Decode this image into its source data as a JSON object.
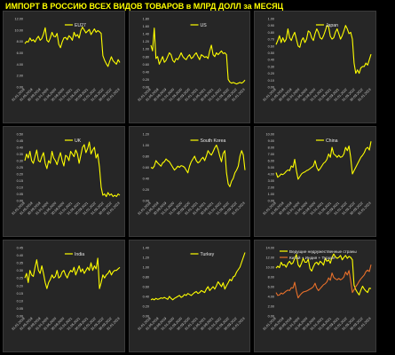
{
  "title": "ИМПОРТ В РОССИЮ ВСЕХ ВИДОВ ТОВАРОВ в МЛРД ДОЛЛ за МЕСЯЦ",
  "colors": {
    "line": "#ffff00",
    "series2": "#e8702a",
    "background": "#000000",
    "panel": "#262626"
  },
  "chart_data": [
    {
      "type": "line",
      "legend": [
        "EU27"
      ],
      "yticks": [
        "0.00",
        "2.00",
        "4.00",
        "6.00",
        "8.00",
        "10.00",
        "12.00"
      ],
      "ylim": [
        0,
        12
      ],
      "xticks": [
        "31.01.2019",
        "31.05.2019",
        "30.09.2019",
        "31.01.2020",
        "31.05.2020",
        "30.09.2020",
        "31.01.2021",
        "31.05.2021",
        "30.09.2021",
        "31.01.2022",
        "31.05.2022",
        "30.09.2022",
        "31.01.2023"
      ],
      "series": [
        {
          "values": [
            7.6,
            8.0,
            7.9,
            8.6,
            8.1,
            8.3,
            7.9,
            8.5,
            8.9,
            8.2,
            8.5,
            9.3,
            10.4,
            8.2,
            7.9,
            8.6,
            9.6,
            8.9,
            8.8,
            9.4,
            7.5,
            6.9,
            7.9,
            8.6,
            8.7,
            8.3,
            9.0,
            8.7,
            8.2,
            9.6,
            8.9,
            9.2,
            8.6,
            9.9,
            10.5,
            10.0,
            9.5,
            9.8,
            10.1,
            9.2,
            9.7,
            10.2,
            9.6,
            9.9,
            9.7,
            9.4,
            5.5,
            4.7,
            4.1,
            3.6,
            4.5,
            5.3,
            4.6,
            4.3,
            4.0,
            4.8,
            4.3
          ]
        }
      ]
    },
    {
      "type": "line",
      "legend": [
        "US"
      ],
      "yticks": [
        "0.00",
        "0.20",
        "0.40",
        "0.60",
        "0.80",
        "1.00",
        "1.20",
        "1.40",
        "1.60",
        "1.80"
      ],
      "ylim": [
        0,
        1.8
      ],
      "xticks": [
        "31.01.2019",
        "31.05.2019",
        "30.09.2019",
        "31.01.2020",
        "31.05.2020",
        "30.09.2020",
        "31.01.2021",
        "31.05.2021",
        "30.09.2021",
        "31.01.2022",
        "31.05.2022",
        "30.09.2022",
        "31.01.2023"
      ],
      "series": [
        {
          "values": [
            1.1,
            0.95,
            1.55,
            0.75,
            0.8,
            0.6,
            0.7,
            0.8,
            0.65,
            0.7,
            0.8,
            0.9,
            0.85,
            0.7,
            0.65,
            0.75,
            0.72,
            0.8,
            0.9,
            0.8,
            0.75,
            0.72,
            0.8,
            0.85,
            0.75,
            0.78,
            0.85,
            0.9,
            0.8,
            0.72,
            0.85,
            0.82,
            0.78,
            0.8,
            0.75,
            0.95,
            1.1,
            0.85,
            0.8,
            0.9,
            0.85,
            0.9,
            0.95,
            0.88,
            0.9,
            0.85,
            0.2,
            0.13,
            0.1,
            0.12,
            0.1,
            0.08,
            0.1,
            0.12,
            0.1,
            0.13,
            0.18
          ]
        }
      ]
    },
    {
      "type": "line",
      "legend": [
        "Japan"
      ],
      "yticks": [
        "0.00",
        "0.10",
        "0.20",
        "0.30",
        "0.40",
        "0.50",
        "0.60",
        "0.70",
        "0.80",
        "0.90",
        "1.00"
      ],
      "ylim": [
        0,
        1.0
      ],
      "xticks": [
        "31.01.2019",
        "31.05.2019",
        "30.09.2019",
        "31.01.2020",
        "31.05.2020",
        "30.09.2020",
        "31.01.2021",
        "31.05.2021",
        "30.09.2021",
        "31.01.2022",
        "31.05.2022",
        "30.09.2022",
        "31.01.2023"
      ],
      "series": [
        {
          "values": [
            0.62,
            0.68,
            0.75,
            0.65,
            0.72,
            0.66,
            0.7,
            0.85,
            0.72,
            0.68,
            0.75,
            0.8,
            0.7,
            0.6,
            0.58,
            0.68,
            0.72,
            0.65,
            0.7,
            0.82,
            0.8,
            0.72,
            0.68,
            0.78,
            0.85,
            0.8,
            0.72,
            0.7,
            0.75,
            0.82,
            0.9,
            0.88,
            0.74,
            0.7,
            0.72,
            0.8,
            0.85,
            0.78,
            0.7,
            0.75,
            0.82,
            0.9,
            0.85,
            0.78,
            0.8,
            0.7,
            0.35,
            0.2,
            0.25,
            0.2,
            0.28,
            0.3,
            0.3,
            0.35,
            0.32,
            0.4,
            0.48
          ]
        }
      ]
    },
    {
      "type": "line",
      "legend": [
        "UK"
      ],
      "yticks": [
        "0.00",
        "0.05",
        "0.10",
        "0.15",
        "0.20",
        "0.25",
        "0.30",
        "0.35",
        "0.40",
        "0.45",
        "0.50"
      ],
      "ylim": [
        0,
        0.5
      ],
      "xticks": [
        "31.01.2019",
        "31.05.2019",
        "30.09.2019",
        "31.01.2020",
        "31.05.2020",
        "30.09.2020",
        "31.01.2021",
        "31.05.2021",
        "30.09.2021",
        "31.01.2022",
        "31.05.2022",
        "30.09.2022",
        "31.01.2023"
      ],
      "series": [
        {
          "values": [
            0.3,
            0.35,
            0.32,
            0.37,
            0.3,
            0.28,
            0.33,
            0.38,
            0.3,
            0.29,
            0.33,
            0.36,
            0.28,
            0.24,
            0.3,
            0.28,
            0.37,
            0.32,
            0.3,
            0.27,
            0.32,
            0.36,
            0.3,
            0.26,
            0.34,
            0.33,
            0.3,
            0.37,
            0.35,
            0.33,
            0.38,
            0.35,
            0.28,
            0.34,
            0.4,
            0.42,
            0.36,
            0.39,
            0.44,
            0.35,
            0.38,
            0.4,
            0.32,
            0.35,
            0.25,
            0.1,
            0.04,
            0.05,
            0.03,
            0.06,
            0.04,
            0.05,
            0.03,
            0.04,
            0.03,
            0.05,
            0.04
          ]
        }
      ]
    },
    {
      "type": "line",
      "legend": [
        "South Korea"
      ],
      "yticks": [
        "0.00",
        "0.20",
        "0.40",
        "0.60",
        "0.80",
        "1.00",
        "1.20"
      ],
      "ylim": [
        0,
        1.2
      ],
      "xticks": [
        "31.01.2019",
        "31.05.2019",
        "30.09.2019",
        "31.01.2020",
        "31.05.2020",
        "30.09.2020",
        "31.01.2021",
        "31.05.2021",
        "30.09.2021",
        "31.01.2022",
        "31.05.2022",
        "30.09.2022",
        "31.01.2023"
      ],
      "series": [
        {
          "values": [
            0.6,
            0.58,
            0.62,
            0.72,
            0.68,
            0.65,
            0.62,
            0.68,
            0.7,
            0.75,
            0.72,
            0.7,
            0.65,
            0.6,
            0.55,
            0.58,
            0.62,
            0.6,
            0.63,
            0.62,
            0.6,
            0.55,
            0.5,
            0.62,
            0.7,
            0.75,
            0.8,
            0.72,
            0.68,
            0.7,
            0.75,
            0.78,
            0.72,
            0.8,
            0.9,
            0.85,
            0.82,
            0.88,
            0.95,
            1.0,
            0.92,
            0.8,
            0.7,
            0.85,
            0.9,
            0.5,
            0.3,
            0.25,
            0.35,
            0.4,
            0.5,
            0.55,
            0.62,
            0.8,
            0.9,
            0.82,
            0.55
          ]
        }
      ]
    },
    {
      "type": "line",
      "legend": [
        "China"
      ],
      "yticks": [
        "0.00",
        "1.00",
        "2.00",
        "3.00",
        "4.00",
        "5.00",
        "6.00",
        "7.00",
        "8.00",
        "9.00",
        "10.00"
      ],
      "ylim": [
        0,
        10
      ],
      "xticks": [
        "31.01.2019",
        "31.05.2019",
        "30.09.2019",
        "31.01.2020",
        "31.05.2020",
        "30.09.2020",
        "31.01.2021",
        "31.05.2021",
        "30.09.2021",
        "31.01.2022",
        "31.05.2022",
        "30.09.2022",
        "31.01.2023"
      ],
      "series": [
        {
          "values": [
            4.2,
            3.5,
            3.7,
            4.0,
            3.9,
            4.1,
            4.4,
            4.6,
            4.5,
            5.2,
            5.0,
            6.2,
            4.5,
            3.2,
            3.6,
            4.0,
            4.2,
            4.3,
            4.5,
            4.6,
            4.8,
            5.0,
            5.2,
            6.0,
            5.0,
            4.5,
            4.8,
            5.2,
            5.6,
            5.8,
            6.2,
            7.0,
            6.5,
            8.0,
            7.0,
            6.8,
            6.5,
            6.8,
            6.5,
            6.6,
            7.0,
            8.0,
            7.5,
            8.2,
            6.5,
            4.0,
            4.5,
            5.0,
            5.5,
            6.0,
            6.5,
            6.8,
            7.2,
            7.8,
            8.0,
            7.6,
            8.9
          ]
        }
      ]
    },
    {
      "type": "line",
      "legend": [
        "India"
      ],
      "yticks": [
        "0.00",
        "0.05",
        "0.10",
        "0.15",
        "0.20",
        "0.25",
        "0.30",
        "0.35",
        "0.40",
        "0.45"
      ],
      "ylim": [
        0,
        0.45
      ],
      "xticks": [
        "31.01.2019",
        "31.05.2019",
        "30.09.2019",
        "31.01.2020",
        "31.05.2020",
        "30.09.2020",
        "31.01.2021",
        "31.05.2021",
        "30.09.2021",
        "31.01.2022",
        "31.05.2022",
        "30.09.2022",
        "31.01.2023"
      ],
      "series": [
        {
          "values": [
            0.25,
            0.28,
            0.22,
            0.3,
            0.27,
            0.26,
            0.32,
            0.37,
            0.3,
            0.28,
            0.33,
            0.28,
            0.22,
            0.18,
            0.22,
            0.24,
            0.27,
            0.25,
            0.26,
            0.3,
            0.25,
            0.26,
            0.29,
            0.3,
            0.27,
            0.25,
            0.28,
            0.3,
            0.29,
            0.32,
            0.27,
            0.3,
            0.33,
            0.29,
            0.31,
            0.28,
            0.3,
            0.32,
            0.3,
            0.35,
            0.3,
            0.33,
            0.31,
            0.38,
            0.18,
            0.22,
            0.27,
            0.25,
            0.27,
            0.28,
            0.3,
            0.27,
            0.29,
            0.3,
            0.3,
            0.31,
            0.32
          ]
        }
      ]
    },
    {
      "type": "line",
      "legend": [
        "Turkey"
      ],
      "yticks": [
        "0.00",
        "0.20",
        "0.40",
        "0.60",
        "0.80",
        "1.00",
        "1.20",
        "1.40"
      ],
      "ylim": [
        0,
        1.4
      ],
      "xticks": [
        "31.01.2019",
        "31.05.2019",
        "30.09.2019",
        "31.01.2020",
        "31.05.2020",
        "30.09.2020",
        "31.01.2021",
        "31.05.2021",
        "30.09.2021",
        "31.01.2022",
        "31.05.2022",
        "30.09.2022",
        "31.01.2023"
      ],
      "series": [
        {
          "values": [
            0.33,
            0.35,
            0.33,
            0.36,
            0.34,
            0.35,
            0.37,
            0.36,
            0.38,
            0.36,
            0.34,
            0.4,
            0.36,
            0.33,
            0.36,
            0.38,
            0.4,
            0.42,
            0.38,
            0.4,
            0.44,
            0.42,
            0.46,
            0.44,
            0.42,
            0.45,
            0.48,
            0.5,
            0.46,
            0.48,
            0.52,
            0.5,
            0.48,
            0.55,
            0.6,
            0.52,
            0.56,
            0.6,
            0.55,
            0.62,
            0.7,
            0.65,
            0.6,
            0.68,
            0.55,
            0.62,
            0.68,
            0.75,
            0.72,
            0.8,
            0.82,
            0.9,
            0.95,
            1.0,
            1.1,
            1.2,
            1.3
          ]
        }
      ]
    },
    {
      "type": "line",
      "legend": [
        "Ведущие недружественные страны",
        "Китай + Индия + Турция"
      ],
      "yticks": [
        "0.00",
        "2.00",
        "4.00",
        "6.00",
        "8.00",
        "10.00",
        "12.00",
        "14.00"
      ],
      "ylim": [
        0,
        14
      ],
      "xticks": [
        "31.01.2019",
        "31.05.2019",
        "30.09.2019",
        "31.01.2020",
        "31.05.2020",
        "30.09.2020",
        "31.01.2021",
        "31.05.2021",
        "30.09.2021",
        "31.01.2022",
        "31.05.2022",
        "30.09.2022",
        "31.01.2023"
      ],
      "series": [
        {
          "values": [
            9.8,
            10.2,
            9.9,
            11.0,
            10.4,
            10.5,
            10.0,
            10.8,
            11.2,
            10.6,
            10.9,
            11.8,
            12.6,
            10.5,
            10.0,
            10.8,
            11.8,
            11.0,
            11.0,
            11.6,
            9.7,
            9.2,
            10.1,
            10.8,
            11.0,
            10.5,
            11.2,
            10.9,
            10.4,
            11.8,
            11.2,
            11.5,
            10.8,
            12.0,
            12.7,
            12.1,
            11.8,
            12.0,
            12.4,
            11.5,
            12.0,
            12.4,
            11.8,
            12.2,
            12.0,
            11.5,
            6.3,
            5.4,
            4.8,
            4.3,
            5.3,
            6.1,
            5.5,
            5.1,
            4.8,
            5.7,
            5.6
          ]
        },
        {
          "values": [
            4.8,
            4.2,
            4.3,
            4.7,
            4.5,
            4.8,
            5.1,
            5.3,
            5.2,
            5.8,
            5.7,
            6.9,
            5.1,
            3.7,
            4.2,
            4.6,
            4.9,
            5.0,
            5.1,
            5.3,
            5.5,
            5.7,
            6.0,
            6.7,
            5.7,
            5.2,
            5.6,
            6.0,
            6.4,
            6.6,
            7.0,
            7.8,
            7.3,
            8.8,
            7.9,
            7.6,
            7.4,
            7.7,
            7.4,
            7.6,
            8.0,
            9.0,
            8.4,
            9.3,
            7.2,
            4.8,
            5.4,
            6.0,
            6.5,
            7.1,
            7.6,
            8.0,
            8.4,
            9.1,
            9.4,
            9.1,
            10.5
          ]
        }
      ]
    }
  ]
}
